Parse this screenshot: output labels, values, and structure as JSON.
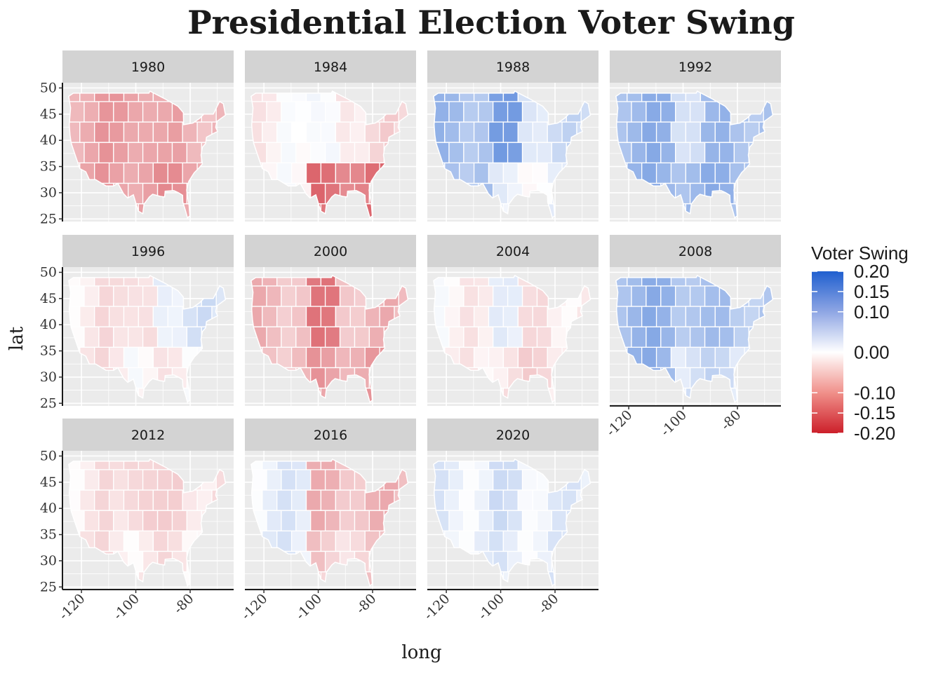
{
  "chart_data": {
    "type": "map",
    "title": "Presidential Election Voter Swing",
    "xlabel": "long",
    "ylabel": "lat",
    "x_ticks": [
      -120,
      -100,
      -80
    ],
    "y_ticks": [
      25,
      30,
      35,
      40,
      45,
      50
    ],
    "xlim": [
      -127,
      -64
    ],
    "ylim": [
      24.5,
      51
    ],
    "legend": {
      "title": "Voter Swing",
      "placement": "right",
      "labels": [
        "0.20",
        "0.15",
        "0.10",
        "0.00",
        "-0.10",
        "-0.15",
        "-0.20"
      ],
      "values": [
        0.2,
        0.15,
        0.1,
        0.0,
        -0.1,
        -0.15,
        -0.2
      ],
      "colors": {
        "low": "#cc1f2a",
        "mid": "#ffffff",
        "high": "#1f5fcf"
      },
      "range": [
        -0.2,
        0.2
      ]
    },
    "panels": [
      {
        "label": "1980",
        "west": -0.08,
        "plains": -0.09,
        "east": -0.07,
        "south": -0.09
      },
      {
        "label": "1984",
        "west": -0.01,
        "plains": 0.02,
        "east": -0.03,
        "south": -0.12
      },
      {
        "label": "1988",
        "west": 0.08,
        "plains": 0.11,
        "east": 0.04,
        "south": 0.01
      },
      {
        "label": "1992",
        "west": 0.09,
        "plains": 0.05,
        "east": 0.08,
        "south": 0.09
      },
      {
        "label": "1996",
        "west": -0.02,
        "plains": -0.04,
        "east": 0.03,
        "south": -0.01
      },
      {
        "label": "2000",
        "west": -0.06,
        "plains": -0.11,
        "east": -0.06,
        "south": -0.08
      },
      {
        "label": "2004",
        "west": -0.01,
        "plains": 0.01,
        "east": -0.02,
        "south": -0.03
      },
      {
        "label": "2008",
        "west": 0.09,
        "plains": 0.08,
        "east": 0.07,
        "south": 0.04
      },
      {
        "label": "2012",
        "west": -0.02,
        "plains": -0.05,
        "east": -0.03,
        "south": -0.02
      },
      {
        "label": "2016",
        "west": 0.02,
        "plains": -0.06,
        "east": -0.06,
        "south": -0.04
      },
      {
        "label": "2020",
        "west": 0.02,
        "plains": 0.03,
        "east": 0.02,
        "south": 0.02
      }
    ]
  }
}
